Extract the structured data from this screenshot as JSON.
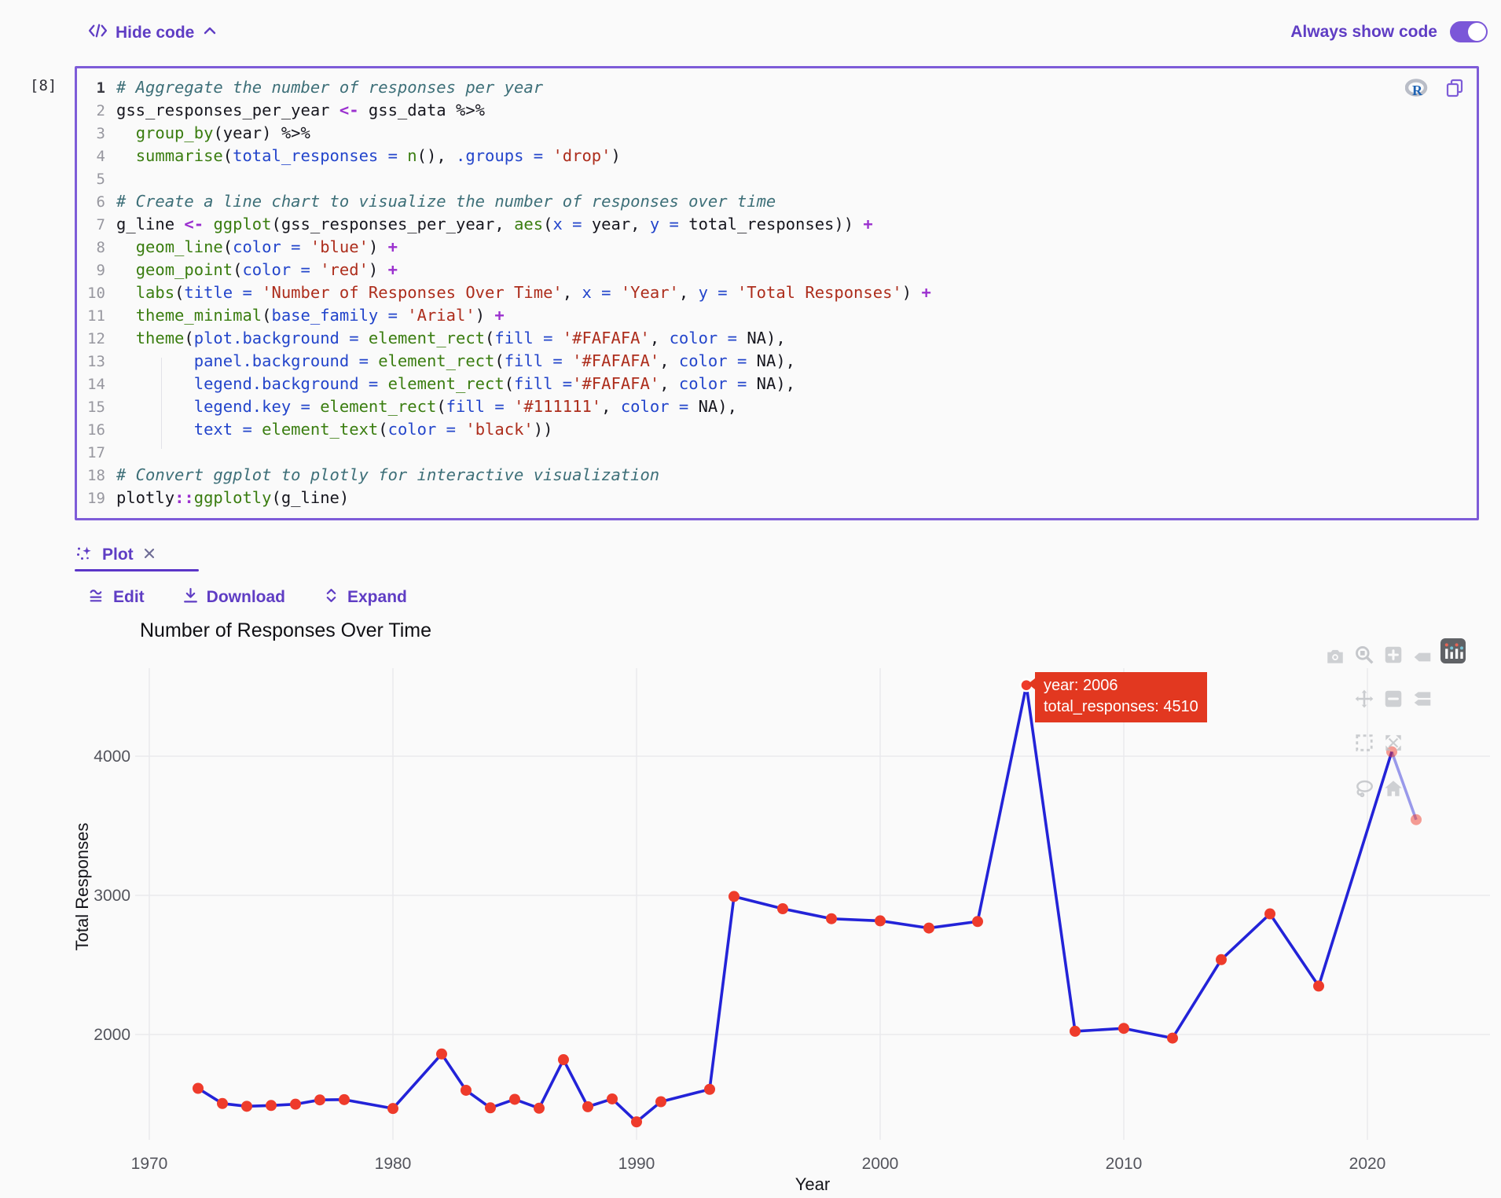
{
  "header": {
    "hide_code_label": "Hide code",
    "always_show_code_label": "Always show code",
    "always_show_code_on": true
  },
  "cell": {
    "execution_count": "[8]",
    "language": "R",
    "code_lines": [
      {
        "n": "1",
        "t": [
          [
            "c",
            "# Aggregate the number of responses per year"
          ]
        ]
      },
      {
        "n": "2",
        "t": [
          [
            "p",
            "gss_responses_per_year "
          ],
          [
            "k",
            "<-"
          ],
          [
            "p",
            " gss_data %>%"
          ]
        ]
      },
      {
        "n": "3",
        "t": [
          [
            "p",
            "  "
          ],
          [
            "f",
            "group_by"
          ],
          [
            "p",
            "(year) %>%"
          ]
        ]
      },
      {
        "n": "4",
        "t": [
          [
            "p",
            "  "
          ],
          [
            "f",
            "summarise"
          ],
          [
            "p",
            "("
          ],
          [
            "b",
            "total_responses = "
          ],
          [
            "f",
            "n"
          ],
          [
            "p",
            "(), "
          ],
          [
            "b",
            ".groups = "
          ],
          [
            "s",
            "'drop'"
          ],
          [
            "p",
            ")"
          ]
        ]
      },
      {
        "n": "5",
        "t": []
      },
      {
        "n": "6",
        "t": [
          [
            "c",
            "# Create a line chart to visualize the number of responses over time"
          ]
        ]
      },
      {
        "n": "7",
        "t": [
          [
            "p",
            "g_line "
          ],
          [
            "k",
            "<-"
          ],
          [
            "p",
            " "
          ],
          [
            "f",
            "ggplot"
          ],
          [
            "p",
            "(gss_responses_per_year, "
          ],
          [
            "f",
            "aes"
          ],
          [
            "p",
            "("
          ],
          [
            "b",
            "x = "
          ],
          [
            "p",
            "year, "
          ],
          [
            "b",
            "y = "
          ],
          [
            "p",
            "total_responses)) "
          ],
          [
            "k",
            "+"
          ]
        ]
      },
      {
        "n": "8",
        "t": [
          [
            "p",
            "  "
          ],
          [
            "f",
            "geom_line"
          ],
          [
            "p",
            "("
          ],
          [
            "b",
            "color = "
          ],
          [
            "s",
            "'blue'"
          ],
          [
            "p",
            ") "
          ],
          [
            "k",
            "+"
          ]
        ]
      },
      {
        "n": "9",
        "t": [
          [
            "p",
            "  "
          ],
          [
            "f",
            "geom_point"
          ],
          [
            "p",
            "("
          ],
          [
            "b",
            "color = "
          ],
          [
            "s",
            "'red'"
          ],
          [
            "p",
            ") "
          ],
          [
            "k",
            "+"
          ]
        ]
      },
      {
        "n": "10",
        "t": [
          [
            "p",
            "  "
          ],
          [
            "f",
            "labs"
          ],
          [
            "p",
            "("
          ],
          [
            "b",
            "title = "
          ],
          [
            "s",
            "'Number of Responses Over Time'"
          ],
          [
            "p",
            ", "
          ],
          [
            "b",
            "x = "
          ],
          [
            "s",
            "'Year'"
          ],
          [
            "p",
            ", "
          ],
          [
            "b",
            "y = "
          ],
          [
            "s",
            "'Total Responses'"
          ],
          [
            "p",
            ") "
          ],
          [
            "k",
            "+"
          ]
        ]
      },
      {
        "n": "11",
        "t": [
          [
            "p",
            "  "
          ],
          [
            "f",
            "theme_minimal"
          ],
          [
            "p",
            "("
          ],
          [
            "b",
            "base_family = "
          ],
          [
            "s",
            "'Arial'"
          ],
          [
            "p",
            ") "
          ],
          [
            "k",
            "+"
          ]
        ]
      },
      {
        "n": "12",
        "t": [
          [
            "p",
            "  "
          ],
          [
            "f",
            "theme"
          ],
          [
            "p",
            "("
          ],
          [
            "b",
            "plot.background = "
          ],
          [
            "f",
            "element_rect"
          ],
          [
            "p",
            "("
          ],
          [
            "b",
            "fill = "
          ],
          [
            "s",
            "'#FAFAFA'"
          ],
          [
            "p",
            ", "
          ],
          [
            "b",
            "color = "
          ],
          [
            "p",
            "NA),"
          ]
        ]
      },
      {
        "n": "13",
        "t": [
          [
            "p",
            "        "
          ],
          [
            "b",
            "panel.background = "
          ],
          [
            "f",
            "element_rect"
          ],
          [
            "p",
            "("
          ],
          [
            "b",
            "fill = "
          ],
          [
            "s",
            "'#FAFAFA'"
          ],
          [
            "p",
            ", "
          ],
          [
            "b",
            "color = "
          ],
          [
            "p",
            "NA),"
          ]
        ]
      },
      {
        "n": "14",
        "t": [
          [
            "p",
            "        "
          ],
          [
            "b",
            "legend.background = "
          ],
          [
            "f",
            "element_rect"
          ],
          [
            "p",
            "("
          ],
          [
            "b",
            "fill ="
          ],
          [
            "s",
            "'#FAFAFA'"
          ],
          [
            "p",
            ", "
          ],
          [
            "b",
            "color = "
          ],
          [
            "p",
            "NA),"
          ]
        ]
      },
      {
        "n": "15",
        "t": [
          [
            "p",
            "        "
          ],
          [
            "b",
            "legend.key = "
          ],
          [
            "f",
            "element_rect"
          ],
          [
            "p",
            "("
          ],
          [
            "b",
            "fill = "
          ],
          [
            "s",
            "'#111111'"
          ],
          [
            "p",
            ", "
          ],
          [
            "b",
            "color = "
          ],
          [
            "p",
            "NA),"
          ]
        ]
      },
      {
        "n": "16",
        "t": [
          [
            "p",
            "        "
          ],
          [
            "b",
            "text = "
          ],
          [
            "f",
            "element_text"
          ],
          [
            "p",
            "("
          ],
          [
            "b",
            "color = "
          ],
          [
            "s",
            "'black'"
          ],
          [
            "p",
            "))"
          ]
        ]
      },
      {
        "n": "17",
        "t": []
      },
      {
        "n": "18",
        "t": [
          [
            "c",
            "# Convert ggplot to plotly for interactive visualization"
          ]
        ]
      },
      {
        "n": "19",
        "t": [
          [
            "p",
            "plotly"
          ],
          [
            "k",
            "::"
          ],
          [
            "f",
            "ggplotly"
          ],
          [
            "p",
            "(g_line)"
          ]
        ]
      }
    ]
  },
  "plot_tab": {
    "label": "Plot"
  },
  "actions": {
    "edit_label": "Edit",
    "download_label": "Download",
    "expand_label": "Expand"
  },
  "tooltip": {
    "line1": "year: 2006",
    "line2": "total_responses: 4510"
  },
  "modebar_icons": [
    "camera-icon",
    "zoom-icon",
    "zoom-in-icon",
    "hover-closest-icon",
    "plotly-logo-icon",
    "pan-icon",
    "zoom-out-icon",
    "hover-compare-icon",
    "box-select-icon",
    "autoscale-icon",
    "lasso-icon",
    "home-icon"
  ],
  "colors": {
    "accent_purple": "#5f3dc4",
    "cell_border_purple": "#7e5cd8",
    "background": "#FAFAFA",
    "line_blue": "#2323d8",
    "point_red": "#ee3b2b",
    "tooltip_red": "#e23820"
  },
  "chart_data": {
    "type": "line",
    "title": "Number of Responses Over Time",
    "xlabel": "Year",
    "ylabel": "Total Responses",
    "series_name": "total_responses",
    "x": [
      1972,
      1973,
      1974,
      1975,
      1976,
      1977,
      1978,
      1980,
      1982,
      1983,
      1984,
      1985,
      1986,
      1987,
      1988,
      1989,
      1990,
      1991,
      1993,
      1994,
      1996,
      1998,
      2000,
      2002,
      2004,
      2006,
      2008,
      2010,
      2012,
      2014,
      2016,
      2018,
      2021,
      2022
    ],
    "y": [
      1613,
      1504,
      1484,
      1490,
      1499,
      1530,
      1532,
      1468,
      1860,
      1599,
      1473,
      1534,
      1470,
      1819,
      1481,
      1537,
      1372,
      1517,
      1606,
      2992,
      2904,
      2832,
      2817,
      2765,
      2812,
      4510,
      2023,
      2044,
      1974,
      2538,
      2867,
      2348,
      4032,
      3544
    ],
    "x_ticks": [
      1970,
      1980,
      1990,
      2000,
      2010,
      2020
    ],
    "y_ticks": [
      2000,
      3000,
      4000
    ],
    "xlim": [
      1969,
      2024
    ],
    "ylim": [
      1250,
      4700
    ],
    "grid": true,
    "legend": "none",
    "hover": {
      "x": 2006,
      "y": 4510
    },
    "faded_from": 2021
  }
}
